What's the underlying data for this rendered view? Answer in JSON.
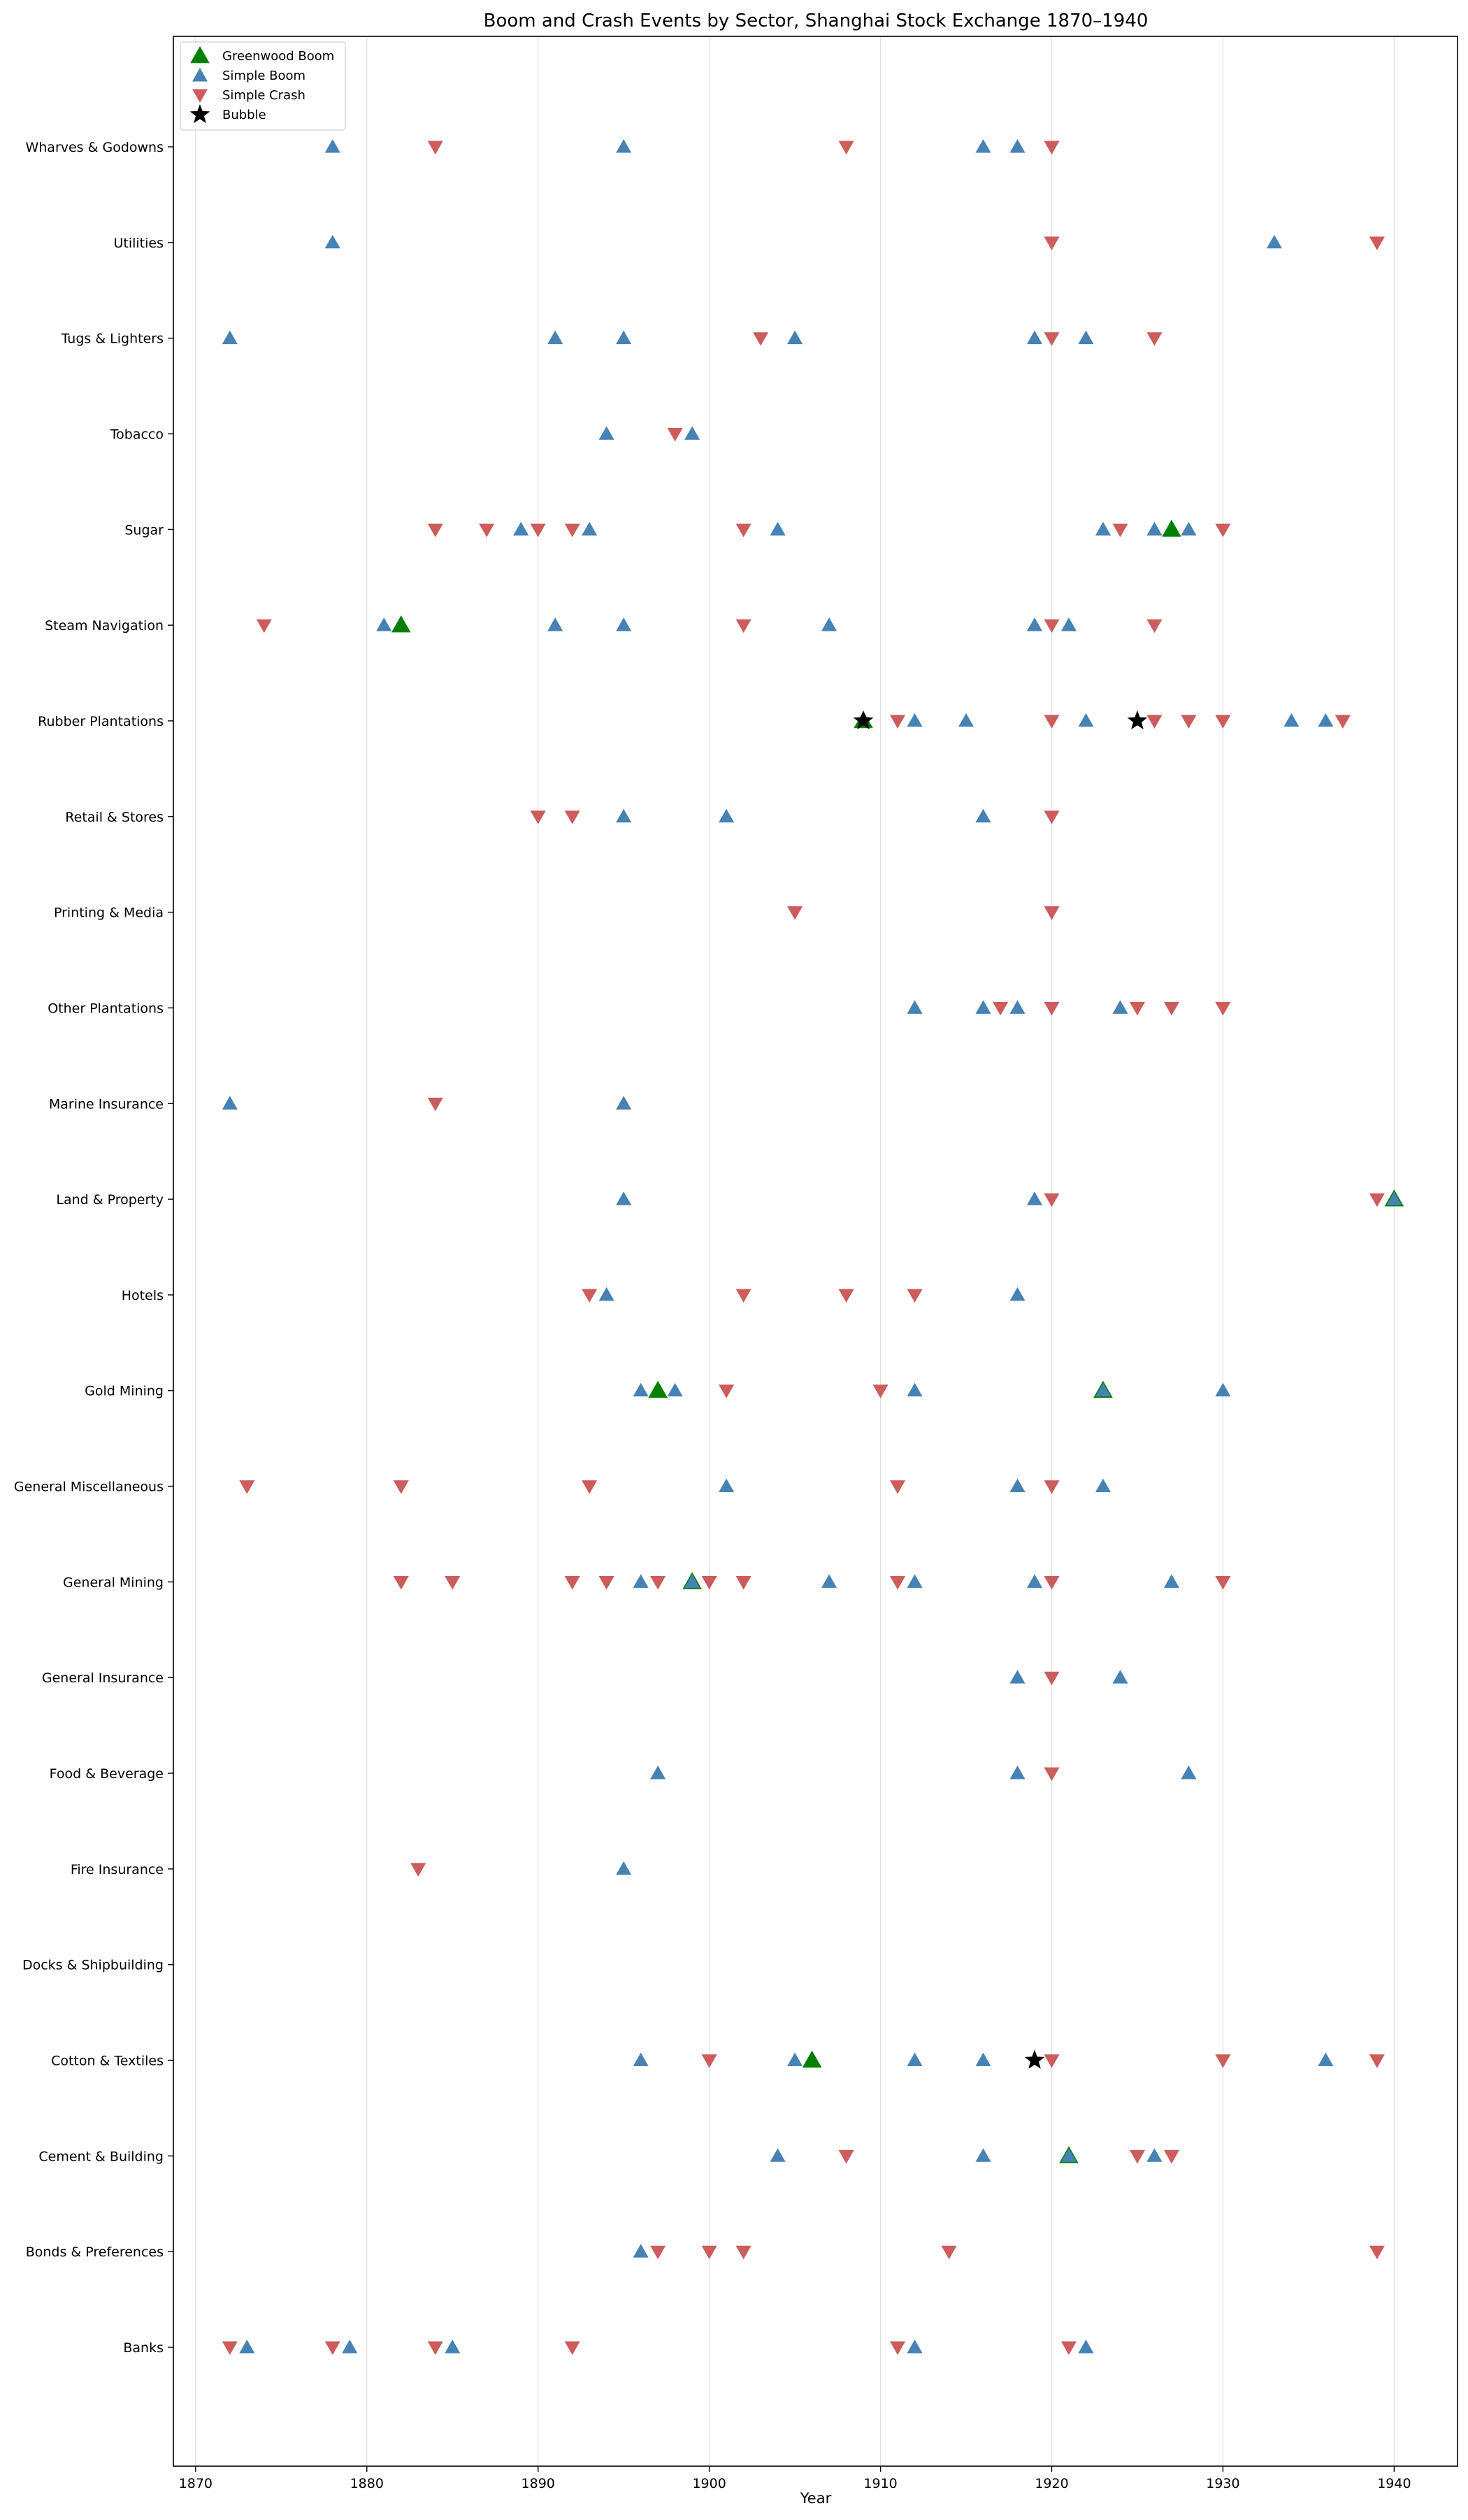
{
  "chart_data": {
    "type": "scatter",
    "title": "Boom and Crash Events by Sector, Shanghai Stock Exchange 1870–1940",
    "xlabel": "Year",
    "ylabel": "",
    "xlim": [
      1868.7,
      1943.7
    ],
    "xticks": [
      1870,
      1880,
      1890,
      1900,
      1910,
      1920,
      1930,
      1940
    ],
    "grid": "vertical",
    "legend_position": "top-left",
    "categories": [
      "Wharves & Godowns",
      "Utilities",
      "Tugs & Lighters",
      "Tobacco",
      "Sugar",
      "Steam Navigation",
      "Rubber Plantations",
      "Retail & Stores",
      "Printing & Media",
      "Other Plantations",
      "Marine Insurance",
      "Land & Property",
      "Hotels",
      "Gold Mining",
      "General Miscellaneous",
      "General Mining",
      "General Insurance",
      "Food & Beverage",
      "Fire Insurance",
      "Docks & Shipbuilding",
      "Cotton & Textiles",
      "Cement & Building",
      "Bonds & Preferences",
      "Banks"
    ],
    "series": [
      {
        "name": "Greenwood Boom",
        "marker": "triangle-up-large",
        "color": "#008000",
        "points": [
          {
            "sector": "Sugar",
            "year": 1927
          },
          {
            "sector": "Steam Navigation",
            "year": 1882
          },
          {
            "sector": "Rubber Plantations",
            "year": 1909
          },
          {
            "sector": "Land & Property",
            "year": 1940
          },
          {
            "sector": "Gold Mining",
            "year": 1897
          },
          {
            "sector": "Gold Mining",
            "year": 1923
          },
          {
            "sector": "General Mining",
            "year": 1899
          },
          {
            "sector": "Cotton & Textiles",
            "year": 1906
          },
          {
            "sector": "Cement & Building",
            "year": 1921
          }
        ]
      },
      {
        "name": "Simple Boom",
        "marker": "triangle-up",
        "color": "#4682b4",
        "points": [
          {
            "sector": "Wharves & Godowns",
            "year": 1878
          },
          {
            "sector": "Wharves & Godowns",
            "year": 1895
          },
          {
            "sector": "Wharves & Godowns",
            "year": 1916
          },
          {
            "sector": "Wharves & Godowns",
            "year": 1918
          },
          {
            "sector": "Utilities",
            "year": 1878
          },
          {
            "sector": "Utilities",
            "year": 1933
          },
          {
            "sector": "Tugs & Lighters",
            "year": 1872
          },
          {
            "sector": "Tugs & Lighters",
            "year": 1891
          },
          {
            "sector": "Tugs & Lighters",
            "year": 1895
          },
          {
            "sector": "Tugs & Lighters",
            "year": 1905
          },
          {
            "sector": "Tugs & Lighters",
            "year": 1919
          },
          {
            "sector": "Tugs & Lighters",
            "year": 1922
          },
          {
            "sector": "Tobacco",
            "year": 1894
          },
          {
            "sector": "Tobacco",
            "year": 1899
          },
          {
            "sector": "Sugar",
            "year": 1889
          },
          {
            "sector": "Sugar",
            "year": 1893
          },
          {
            "sector": "Sugar",
            "year": 1904
          },
          {
            "sector": "Sugar",
            "year": 1923
          },
          {
            "sector": "Sugar",
            "year": 1926
          },
          {
            "sector": "Sugar",
            "year": 1928
          },
          {
            "sector": "Steam Navigation",
            "year": 1881
          },
          {
            "sector": "Steam Navigation",
            "year": 1891
          },
          {
            "sector": "Steam Navigation",
            "year": 1895
          },
          {
            "sector": "Steam Navigation",
            "year": 1907
          },
          {
            "sector": "Steam Navigation",
            "year": 1919
          },
          {
            "sector": "Steam Navigation",
            "year": 1921
          },
          {
            "sector": "Rubber Plantations",
            "year": 1912
          },
          {
            "sector": "Rubber Plantations",
            "year": 1915
          },
          {
            "sector": "Rubber Plantations",
            "year": 1922
          },
          {
            "sector": "Rubber Plantations",
            "year": 1934
          },
          {
            "sector": "Rubber Plantations",
            "year": 1936
          },
          {
            "sector": "Retail & Stores",
            "year": 1895
          },
          {
            "sector": "Retail & Stores",
            "year": 1901
          },
          {
            "sector": "Retail & Stores",
            "year": 1916
          },
          {
            "sector": "Other Plantations",
            "year": 1912
          },
          {
            "sector": "Other Plantations",
            "year": 1916
          },
          {
            "sector": "Other Plantations",
            "year": 1918
          },
          {
            "sector": "Other Plantations",
            "year": 1924
          },
          {
            "sector": "Marine Insurance",
            "year": 1872
          },
          {
            "sector": "Marine Insurance",
            "year": 1895
          },
          {
            "sector": "Land & Property",
            "year": 1895
          },
          {
            "sector": "Land & Property",
            "year": 1919
          },
          {
            "sector": "Land & Property",
            "year": 1940
          },
          {
            "sector": "Hotels",
            "year": 1894
          },
          {
            "sector": "Hotels",
            "year": 1918
          },
          {
            "sector": "Gold Mining",
            "year": 1896
          },
          {
            "sector": "Gold Mining",
            "year": 1898
          },
          {
            "sector": "Gold Mining",
            "year": 1912
          },
          {
            "sector": "Gold Mining",
            "year": 1923
          },
          {
            "sector": "Gold Mining",
            "year": 1930
          },
          {
            "sector": "General Miscellaneous",
            "year": 1901
          },
          {
            "sector": "General Miscellaneous",
            "year": 1918
          },
          {
            "sector": "General Miscellaneous",
            "year": 1923
          },
          {
            "sector": "General Mining",
            "year": 1896
          },
          {
            "sector": "General Mining",
            "year": 1899
          },
          {
            "sector": "General Mining",
            "year": 1907
          },
          {
            "sector": "General Mining",
            "year": 1912
          },
          {
            "sector": "General Mining",
            "year": 1919
          },
          {
            "sector": "General Mining",
            "year": 1927
          },
          {
            "sector": "General Insurance",
            "year": 1918
          },
          {
            "sector": "General Insurance",
            "year": 1924
          },
          {
            "sector": "Food & Beverage",
            "year": 1897
          },
          {
            "sector": "Food & Beverage",
            "year": 1918
          },
          {
            "sector": "Food & Beverage",
            "year": 1928
          },
          {
            "sector": "Fire Insurance",
            "year": 1895
          },
          {
            "sector": "Cotton & Textiles",
            "year": 1896
          },
          {
            "sector": "Cotton & Textiles",
            "year": 1905
          },
          {
            "sector": "Cotton & Textiles",
            "year": 1912
          },
          {
            "sector": "Cotton & Textiles",
            "year": 1916
          },
          {
            "sector": "Cotton & Textiles",
            "year": 1936
          },
          {
            "sector": "Cement & Building",
            "year": 1904
          },
          {
            "sector": "Cement & Building",
            "year": 1916
          },
          {
            "sector": "Cement & Building",
            "year": 1921
          },
          {
            "sector": "Cement & Building",
            "year": 1926
          },
          {
            "sector": "Bonds & Preferences",
            "year": 1896
          },
          {
            "sector": "Banks",
            "year": 1873
          },
          {
            "sector": "Banks",
            "year": 1879
          },
          {
            "sector": "Banks",
            "year": 1885
          },
          {
            "sector": "Banks",
            "year": 1912
          },
          {
            "sector": "Banks",
            "year": 1922
          }
        ]
      },
      {
        "name": "Simple Crash",
        "marker": "triangle-down",
        "color": "#cd5c5c",
        "points": [
          {
            "sector": "Wharves & Godowns",
            "year": 1884
          },
          {
            "sector": "Wharves & Godowns",
            "year": 1908
          },
          {
            "sector": "Wharves & Godowns",
            "year": 1920
          },
          {
            "sector": "Utilities",
            "year": 1920
          },
          {
            "sector": "Utilities",
            "year": 1939
          },
          {
            "sector": "Tugs & Lighters",
            "year": 1903
          },
          {
            "sector": "Tugs & Lighters",
            "year": 1920
          },
          {
            "sector": "Tugs & Lighters",
            "year": 1926
          },
          {
            "sector": "Tobacco",
            "year": 1898
          },
          {
            "sector": "Sugar",
            "year": 1884
          },
          {
            "sector": "Sugar",
            "year": 1887
          },
          {
            "sector": "Sugar",
            "year": 1890
          },
          {
            "sector": "Sugar",
            "year": 1892
          },
          {
            "sector": "Sugar",
            "year": 1902
          },
          {
            "sector": "Sugar",
            "year": 1924
          },
          {
            "sector": "Sugar",
            "year": 1930
          },
          {
            "sector": "Steam Navigation",
            "year": 1874
          },
          {
            "sector": "Steam Navigation",
            "year": 1902
          },
          {
            "sector": "Steam Navigation",
            "year": 1920
          },
          {
            "sector": "Steam Navigation",
            "year": 1926
          },
          {
            "sector": "Rubber Plantations",
            "year": 1911
          },
          {
            "sector": "Rubber Plantations",
            "year": 1920
          },
          {
            "sector": "Rubber Plantations",
            "year": 1926
          },
          {
            "sector": "Rubber Plantations",
            "year": 1928
          },
          {
            "sector": "Rubber Plantations",
            "year": 1930
          },
          {
            "sector": "Rubber Plantations",
            "year": 1937
          },
          {
            "sector": "Retail & Stores",
            "year": 1890
          },
          {
            "sector": "Retail & Stores",
            "year": 1892
          },
          {
            "sector": "Retail & Stores",
            "year": 1920
          },
          {
            "sector": "Printing & Media",
            "year": 1905
          },
          {
            "sector": "Printing & Media",
            "year": 1920
          },
          {
            "sector": "Other Plantations",
            "year": 1917
          },
          {
            "sector": "Other Plantations",
            "year": 1920
          },
          {
            "sector": "Other Plantations",
            "year": 1925
          },
          {
            "sector": "Other Plantations",
            "year": 1927
          },
          {
            "sector": "Other Plantations",
            "year": 1930
          },
          {
            "sector": "Marine Insurance",
            "year": 1884
          },
          {
            "sector": "Land & Property",
            "year": 1920
          },
          {
            "sector": "Land & Property",
            "year": 1939
          },
          {
            "sector": "Hotels",
            "year": 1893
          },
          {
            "sector": "Hotels",
            "year": 1902
          },
          {
            "sector": "Hotels",
            "year": 1908
          },
          {
            "sector": "Hotels",
            "year": 1912
          },
          {
            "sector": "Gold Mining",
            "year": 1901
          },
          {
            "sector": "Gold Mining",
            "year": 1910
          },
          {
            "sector": "General Miscellaneous",
            "year": 1873
          },
          {
            "sector": "General Miscellaneous",
            "year": 1882
          },
          {
            "sector": "General Miscellaneous",
            "year": 1893
          },
          {
            "sector": "General Miscellaneous",
            "year": 1911
          },
          {
            "sector": "General Miscellaneous",
            "year": 1920
          },
          {
            "sector": "General Mining",
            "year": 1882
          },
          {
            "sector": "General Mining",
            "year": 1885
          },
          {
            "sector": "General Mining",
            "year": 1892
          },
          {
            "sector": "General Mining",
            "year": 1894
          },
          {
            "sector": "General Mining",
            "year": 1897
          },
          {
            "sector": "General Mining",
            "year": 1900
          },
          {
            "sector": "General Mining",
            "year": 1902
          },
          {
            "sector": "General Mining",
            "year": 1911
          },
          {
            "sector": "General Mining",
            "year": 1920
          },
          {
            "sector": "General Mining",
            "year": 1930
          },
          {
            "sector": "General Insurance",
            "year": 1920
          },
          {
            "sector": "Food & Beverage",
            "year": 1920
          },
          {
            "sector": "Fire Insurance",
            "year": 1883
          },
          {
            "sector": "Cotton & Textiles",
            "year": 1900
          },
          {
            "sector": "Cotton & Textiles",
            "year": 1920
          },
          {
            "sector": "Cotton & Textiles",
            "year": 1930
          },
          {
            "sector": "Cotton & Textiles",
            "year": 1939
          },
          {
            "sector": "Cement & Building",
            "year": 1908
          },
          {
            "sector": "Cement & Building",
            "year": 1925
          },
          {
            "sector": "Cement & Building",
            "year": 1927
          },
          {
            "sector": "Bonds & Preferences",
            "year": 1897
          },
          {
            "sector": "Bonds & Preferences",
            "year": 1900
          },
          {
            "sector": "Bonds & Preferences",
            "year": 1902
          },
          {
            "sector": "Bonds & Preferences",
            "year": 1914
          },
          {
            "sector": "Bonds & Preferences",
            "year": 1939
          },
          {
            "sector": "Banks",
            "year": 1872
          },
          {
            "sector": "Banks",
            "year": 1878
          },
          {
            "sector": "Banks",
            "year": 1884
          },
          {
            "sector": "Banks",
            "year": 1892
          },
          {
            "sector": "Banks",
            "year": 1911
          },
          {
            "sector": "Banks",
            "year": 1921
          }
        ]
      },
      {
        "name": "Bubble",
        "marker": "star",
        "color": "#000000",
        "points": [
          {
            "sector": "Rubber Plantations",
            "year": 1909
          },
          {
            "sector": "Rubber Plantations",
            "year": 1925
          },
          {
            "sector": "Cotton & Textiles",
            "year": 1919
          }
        ]
      }
    ]
  }
}
